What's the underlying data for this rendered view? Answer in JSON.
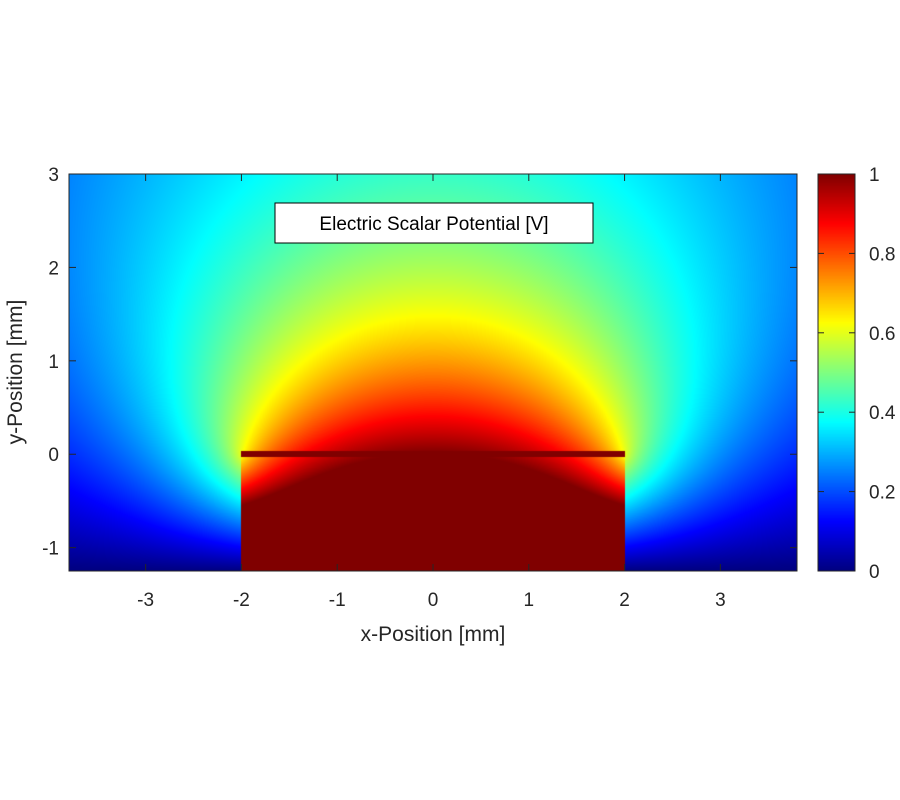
{
  "chart_data": {
    "type": "heatmap",
    "title": "",
    "annotation": "Electric Scalar Potential [V]",
    "xlabel": "x-Position [mm]",
    "ylabel": "y-Position [mm]",
    "xlim": [
      -3.8,
      3.8
    ],
    "ylim": [
      -1.25,
      3.0
    ],
    "xticks": [
      -3,
      -2,
      -1,
      0,
      1,
      2,
      3
    ],
    "yticks": [
      -1,
      0,
      1,
      2,
      3
    ],
    "colormap": "jet",
    "colorbar": {
      "range": [
        0,
        1
      ],
      "ticks": [
        0,
        0.2,
        0.4,
        0.6,
        0.8,
        1
      ],
      "tick_labels": [
        "0",
        "0.2",
        "0.4",
        "0.6",
        "0.8",
        "1"
      ],
      "position": "right"
    },
    "electrode": {
      "x_start": -2.0,
      "x_end": 2.0,
      "y": 0.0,
      "value": 1.0
    },
    "grounded_boundary_y": -1.25,
    "grid": false
  }
}
